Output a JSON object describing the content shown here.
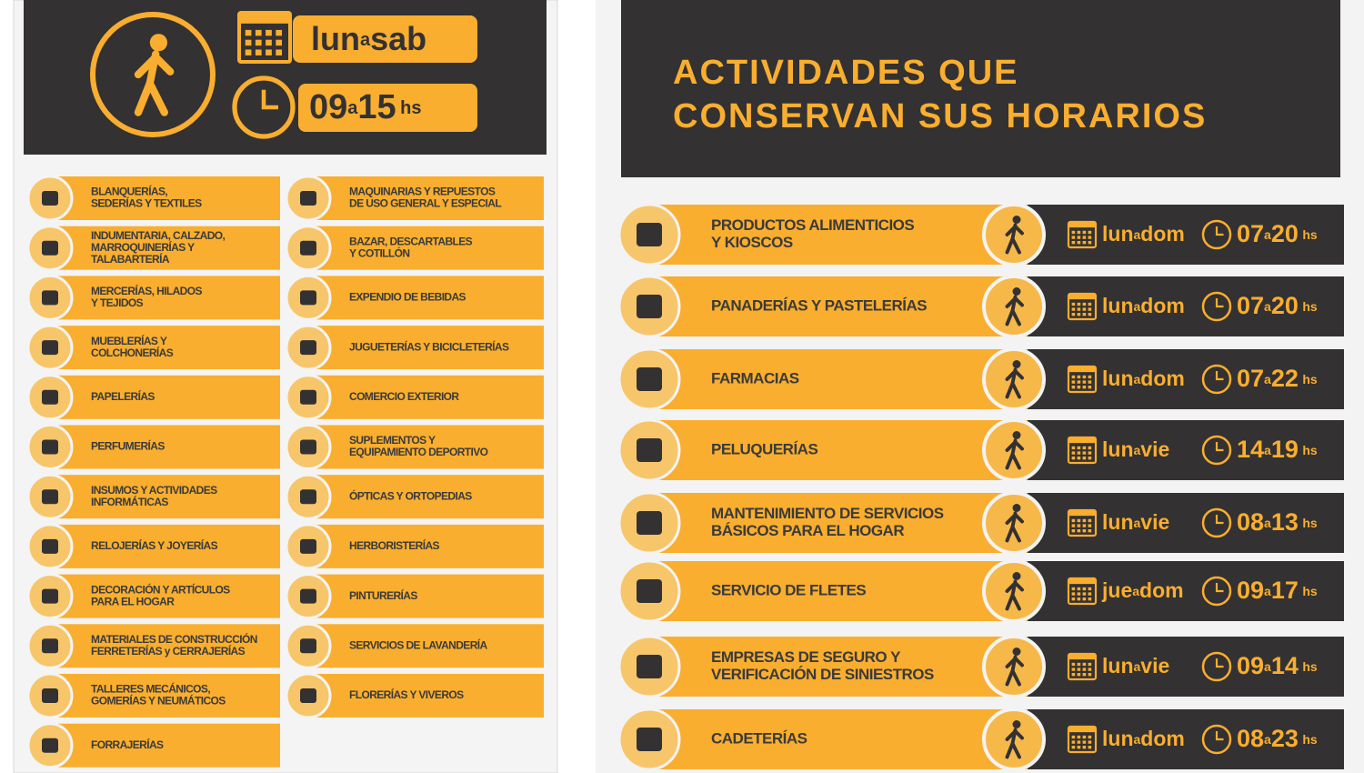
{
  "general": {
    "days": {
      "from": "lun",
      "sep": "a",
      "to": "sab"
    },
    "hours": {
      "from": "09",
      "sep": "a",
      "to": "15",
      "unit": "hs"
    },
    "columns": [
      [
        {
          "lines": [
            "BLANQUERÍAS,",
            "SEDERÍAS Y TEXTILES"
          ]
        },
        {
          "lines": [
            "INDUMENTARIA, CALZADO,",
            "MARROQUINERÍAS Y",
            "TALABARTERÍA"
          ]
        },
        {
          "lines": [
            "MERCERÍAS, HILADOS",
            "Y TEJIDOS"
          ]
        },
        {
          "lines": [
            "MUEBLERÍAS Y",
            "COLCHONERÍAS"
          ]
        },
        {
          "lines": [
            "PAPELERÍAS"
          ]
        },
        {
          "lines": [
            "PERFUMERÍAS"
          ]
        },
        {
          "lines": [
            "INSUMOS Y ACTIVIDADES",
            "INFORMÁTICAS"
          ]
        },
        {
          "lines": [
            "RELOJERÍAS Y JOYERÍAS"
          ]
        },
        {
          "lines": [
            "DECORACIÓN Y ARTÍCULOS",
            "PARA EL HOGAR"
          ]
        },
        {
          "lines": [
            "MATERIALES DE CONSTRUCCIÓN",
            "FERRETERÍAS y CERRAJERÍAS"
          ]
        },
        {
          "lines": [
            "TALLERES MECÁNICOS,",
            "GOMERÍAS Y NEUMÁTICOS"
          ]
        },
        {
          "lines": [
            "FORRAJERÍAS"
          ]
        }
      ],
      [
        {
          "lines": [
            "MAQUINARIAS Y REPUESTOS",
            "DE USO GENERAL Y ESPECIAL"
          ]
        },
        {
          "lines": [
            "BAZAR, DESCARTABLES",
            "Y COTILLÓN"
          ]
        },
        {
          "lines": [
            "EXPENDIO DE BEBIDAS"
          ]
        },
        {
          "lines": [
            "JUGUETERÍAS Y BICICLETERÍAS"
          ]
        },
        {
          "lines": [
            "COMERCIO EXTERIOR"
          ]
        },
        {
          "lines": [
            "SUPLEMENTOS Y",
            "EQUIPAMIENTO DEPORTIVO"
          ]
        },
        {
          "lines": [
            "ÓPTICAS Y ORTOPEDIAS"
          ]
        },
        {
          "lines": [
            "HERBORISTERÍAS"
          ]
        },
        {
          "lines": [
            "PINTURERÍAS"
          ]
        },
        {
          "lines": [
            "SERVICIOS DE LAVANDERÍA"
          ]
        },
        {
          "lines": [
            "FLORERÍAS Y VIVEROS"
          ]
        }
      ]
    ]
  },
  "special": {
    "title": [
      "ACTIVIDADES QUE",
      "CONSERVAN SUS HORARIOS"
    ],
    "rows": [
      {
        "lines": [
          "PRODUCTOS ALIMENTICIOS",
          "Y KIOSCOS"
        ],
        "days": {
          "from": "lun",
          "sep": "a",
          "to": "dom"
        },
        "hours": {
          "from": "07",
          "sep": "a",
          "to": "20",
          "unit": "hs"
        }
      },
      {
        "lines": [
          "PANADERÍAS Y PASTELERÍAS"
        ],
        "days": {
          "from": "lun",
          "sep": "a",
          "to": "dom"
        },
        "hours": {
          "from": "07",
          "sep": "a",
          "to": "20",
          "unit": "hs"
        }
      },
      {
        "lines": [
          "FARMACIAS"
        ],
        "days": {
          "from": "lun",
          "sep": "a",
          "to": "dom"
        },
        "hours": {
          "from": "07",
          "sep": "a",
          "to": "22",
          "unit": "hs"
        }
      },
      {
        "lines": [
          "PELUQUERÍAS"
        ],
        "days": {
          "from": "lun",
          "sep": "a",
          "to": "vie"
        },
        "hours": {
          "from": "14",
          "sep": "a",
          "to": "19",
          "unit": "hs"
        }
      },
      {
        "lines": [
          "MANTENIMIENTO DE SERVICIOS",
          "BÁSICOS PARA EL HOGAR"
        ],
        "days": {
          "from": "lun",
          "sep": "a",
          "to": "vie"
        },
        "hours": {
          "from": "08",
          "sep": "a",
          "to": "13",
          "unit": "hs"
        }
      },
      {
        "lines": [
          "SERVICIO DE FLETES"
        ],
        "days": {
          "from": "jue",
          "sep": "a",
          "to": "dom"
        },
        "hours": {
          "from": "09",
          "sep": "a",
          "to": "17",
          "unit": "hs"
        }
      },
      {
        "lines": [
          "EMPRESAS DE SEGURO Y",
          "VERIFICACIÓN DE SINIESTROS"
        ],
        "days": {
          "from": "lun",
          "sep": "a",
          "to": "vie"
        },
        "hours": {
          "from": "09",
          "sep": "a",
          "to": "14",
          "unit": "hs"
        }
      },
      {
        "lines": [
          "CADETERÍAS"
        ],
        "days": {
          "from": "lun",
          "sep": "a",
          "to": "dom"
        },
        "hours": {
          "from": "08",
          "sep": "a",
          "to": "23",
          "unit": "hs"
        }
      }
    ]
  }
}
